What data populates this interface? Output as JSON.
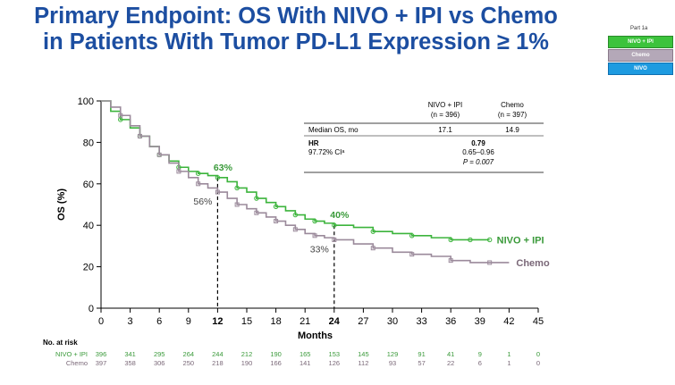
{
  "title": {
    "line1": "Primary Endpoint: OS With NIVO + IPI vs Chemo",
    "line2": "in Patients With Tumor PD-L1 Expression ≥ 1%"
  },
  "legend_panel": {
    "label": "Part 1a",
    "items": [
      {
        "label": "NIVO + IPI",
        "color": "#3cc33c"
      },
      {
        "label": "Chemo",
        "color": "#b4a8b8"
      },
      {
        "label": "NIVO",
        "color": "#1e9be0"
      }
    ]
  },
  "stats_table": {
    "col1": "NIVO + IPI",
    "col1_n": "(n = 396)",
    "col2": "Chemo",
    "col2_n": "(n = 397)",
    "row1_label": "Median OS, mo",
    "row1_v1": "17.1",
    "row1_v2": "14.9",
    "hr_label": "HR",
    "hr_value": "0.79",
    "ci_label": "97.72% CIᵃ",
    "ci_value": "0.65–0.96",
    "p_value": "P = 0.007"
  },
  "risk_table": {
    "title": "No. at risk",
    "rows": [
      {
        "label": "NIVO + IPI",
        "color": "#3a9a3a",
        "values": [
          "396",
          "341",
          "295",
          "264",
          "244",
          "212",
          "190",
          "165",
          "153",
          "145",
          "129",
          "91",
          "41",
          "9",
          "1",
          "0"
        ]
      },
      {
        "label": "Chemo",
        "color": "#7a6878",
        "values": [
          "397",
          "358",
          "306",
          "250",
          "218",
          "190",
          "166",
          "141",
          "126",
          "112",
          "93",
          "57",
          "22",
          "6",
          "1",
          "0"
        ]
      }
    ]
  },
  "chart_data": {
    "type": "line",
    "xlabel": "Months",
    "ylabel": "OS (%)",
    "xlim": [
      0,
      45
    ],
    "ylim": [
      0,
      100
    ],
    "xticks": [
      "0",
      "3",
      "6",
      "9",
      "12",
      "15",
      "18",
      "21",
      "24",
      "27",
      "30",
      "33",
      "36",
      "39",
      "42",
      "45"
    ],
    "yticks": [
      "0",
      "20",
      "40",
      "60",
      "80",
      "100"
    ],
    "annotations": [
      {
        "text": "63%",
        "x": 12,
        "y": 63,
        "series": "NIVO + IPI"
      },
      {
        "text": "56%",
        "x": 12,
        "y": 56,
        "series": "Chemo"
      },
      {
        "text": "40%",
        "x": 24,
        "y": 40,
        "series": "NIVO + IPI"
      },
      {
        "text": "33%",
        "x": 24,
        "y": 33,
        "series": "Chemo"
      }
    ],
    "series": [
      {
        "name": "NIVO + IPI",
        "color": "#3cb43c",
        "x": [
          0,
          1,
          2,
          3,
          4,
          5,
          6,
          7,
          8,
          9,
          10,
          11,
          12,
          13,
          14,
          15,
          16,
          17,
          18,
          19,
          20,
          21,
          22,
          23,
          24,
          26,
          28,
          30,
          32,
          34,
          36,
          37,
          38,
          39,
          40
        ],
        "y": [
          100,
          95,
          91,
          87,
          83,
          78,
          74,
          71,
          68,
          66,
          65,
          64,
          63,
          61,
          58,
          56,
          53,
          51,
          49,
          47,
          45,
          43,
          42,
          41,
          40,
          39,
          37,
          36,
          35,
          34,
          33,
          33,
          33,
          33,
          33
        ]
      },
      {
        "name": "Chemo",
        "color": "#9b8a9b",
        "x": [
          0,
          1,
          2,
          3,
          4,
          5,
          6,
          7,
          8,
          9,
          10,
          11,
          12,
          13,
          14,
          15,
          16,
          17,
          18,
          19,
          20,
          21,
          22,
          23,
          24,
          26,
          28,
          30,
          32,
          34,
          36,
          38,
          40,
          42
        ],
        "y": [
          100,
          97,
          93,
          88,
          83,
          78,
          74,
          70,
          66,
          63,
          60,
          58,
          56,
          53,
          50,
          48,
          46,
          44,
          42,
          40,
          38,
          36,
          35,
          34,
          33,
          31,
          29,
          27,
          26,
          25,
          23,
          22,
          22,
          22
        ]
      }
    ]
  }
}
